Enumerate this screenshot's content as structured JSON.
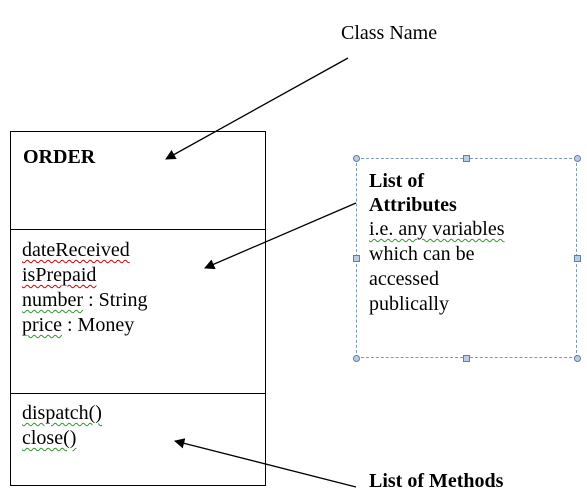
{
  "labels": {
    "class_name": "Class Name",
    "list_of_methods": "List of Methods"
  },
  "uml_class": {
    "name": "ORDER",
    "attributes": [
      {
        "name": "dateReceived",
        "type": ""
      },
      {
        "name": "isPrepaid",
        "type": ""
      },
      {
        "name": "number",
        "type": " : String"
      },
      {
        "name": "price",
        "type": " : Money"
      }
    ],
    "methods": [
      "dispatch()",
      "close()"
    ]
  },
  "attributes_note": {
    "title_line1": "List of",
    "title_line2": "Attributes",
    "body": [
      "i.e. any variables",
      "which can be",
      "accessed",
      "publically"
    ]
  }
}
